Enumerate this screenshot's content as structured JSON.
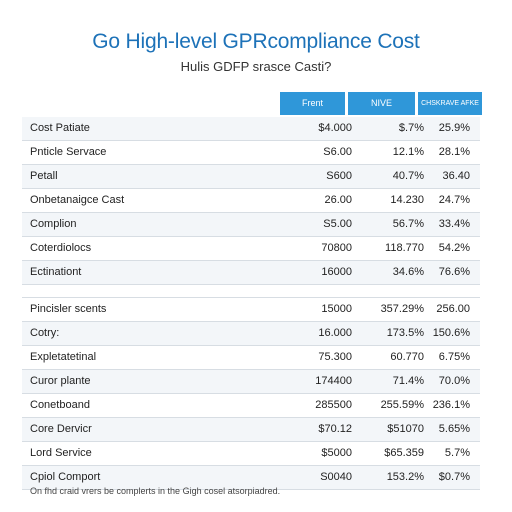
{
  "title": "Go High-level GPRcompliance Cost",
  "subtitle": "Hulis GDFP srasce Casti?",
  "columns": [
    "Frent",
    "NIVE",
    "CHSKRAVE AFKE"
  ],
  "sections": [
    {
      "rows": [
        {
          "label": "Cost Patiate",
          "v1": "$4.000",
          "v2": "$.7%",
          "v3": "25.9%"
        },
        {
          "label": "Pnticle Servace",
          "v1": "S6.00",
          "v2": "12.1%",
          "v3": "28.1%"
        },
        {
          "label": "Petall",
          "v1": "S600",
          "v2": "40.7%",
          "v3": "36.40"
        },
        {
          "label": "Onbetanaigce Cast",
          "v1": "26.00",
          "v2": "14.230",
          "v3": "24.7%"
        },
        {
          "label": "Complion",
          "v1": "S5.00",
          "v2": "56.7%",
          "v3": "33.4%"
        },
        {
          "label": "Coterdiolocs",
          "v1": "70800",
          "v2": "118.770",
          "v3": "54.2%"
        },
        {
          "label": "Ectinationt",
          "v1": "16000",
          "v2": "34.6%",
          "v3": "76.6%"
        }
      ]
    },
    {
      "rows": [
        {
          "label": "Pincisler scents",
          "v1": "15000",
          "v2": "357.29%",
          "v3": "256.00"
        },
        {
          "label": "Cotry:",
          "v1": "16.000",
          "v2": "173.5%",
          "v3": "150.6%"
        },
        {
          "label": "Expletatetinal",
          "v1": "75.300",
          "v2": "60.770",
          "v3": "6.75%"
        },
        {
          "label": "Curor plante",
          "v1": "174400",
          "v2": "71.4%",
          "v3": "70.0%"
        },
        {
          "label": "Conetboand",
          "v1": "285500",
          "v2": "255.59%",
          "v3": "236.1%"
        },
        {
          "label": "Core Dervicr",
          "v1": "$70.12",
          "v2": "$51070",
          "v3": "5.65%"
        },
        {
          "label": "Lord Service",
          "v1": "$5000",
          "v2": "$65.359",
          "v3": "5.7%"
        },
        {
          "label": "Cpiol Comport",
          "v1": "S0040",
          "v2": "153.2%",
          "v3": "$0.7%"
        }
      ]
    }
  ],
  "footnote": "On fhd craid vrers be complerts in the Gigh cosel atsorpiadred."
}
